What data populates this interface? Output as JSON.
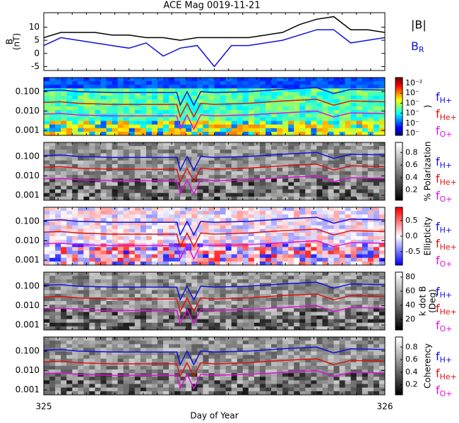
{
  "chart_data": [
    {
      "type": "line",
      "title": "ACE Mag 0019-11-21",
      "ylabel": [
        "B",
        "(nT)"
      ],
      "x": [
        325,
        325.05,
        325.1,
        325.15,
        325.2,
        325.25,
        325.3,
        325.35,
        325.4,
        325.45,
        325.5,
        325.55,
        325.6,
        325.65,
        325.7,
        325.75,
        325.8,
        325.85,
        325.9,
        325.95,
        326
      ],
      "series": [
        {
          "name": "|B|",
          "color": "#000000",
          "values": [
            6,
            8,
            8,
            8,
            7,
            7,
            6,
            6,
            5,
            6,
            6,
            6,
            6,
            7,
            8,
            11,
            13,
            14,
            9,
            9,
            8
          ]
        },
        {
          "name": "BR",
          "color": "#1010e0",
          "values": [
            3,
            6,
            5,
            4,
            3,
            2,
            4,
            -1,
            2,
            3,
            -5,
            3,
            3,
            4,
            5,
            7,
            9,
            9,
            4,
            5,
            6
          ]
        }
      ],
      "xlim": [
        325,
        326
      ],
      "ylim": [
        -6.5,
        15.5
      ],
      "yticks": [
        -5,
        0,
        5,
        10
      ]
    },
    {
      "type": "spectrogram",
      "cmap": "jet",
      "log_y": true,
      "x": [
        325,
        325.05,
        325.1,
        325.2,
        325.3,
        325.39,
        325.4,
        325.42,
        325.44,
        325.46,
        325.5,
        325.6,
        325.7,
        325.8,
        325.85,
        325.9,
        326
      ],
      "series": [
        {
          "name": "fH+",
          "color": "#1010e0",
          "values": [
            0.11,
            0.12,
            0.1,
            0.09,
            0.09,
            0.09,
            0.02,
            0.1,
            0.02,
            0.1,
            0.09,
            0.1,
            0.13,
            0.16,
            0.08,
            0.13,
            0.12
          ]
        },
        {
          "name": "fHe+",
          "color": "#e01010",
          "values": [
            0.028,
            0.03,
            0.025,
            0.022,
            0.022,
            0.022,
            0.005,
            0.025,
            0.005,
            0.025,
            0.022,
            0.025,
            0.033,
            0.04,
            0.02,
            0.033,
            0.03
          ]
        },
        {
          "name": "fO+",
          "color": "#e010e0",
          "values": [
            0.007,
            0.0075,
            0.0063,
            0.0056,
            0.0056,
            0.0056,
            0.0012,
            0.0063,
            0.0012,
            0.0063,
            0.0056,
            0.0063,
            0.008,
            0.01,
            0.005,
            0.008,
            0.0075
          ]
        }
      ],
      "xlim": [
        325,
        326
      ],
      "ylim": [
        0.00056,
        0.53
      ],
      "yticks": [
        {
          "value": 0.001,
          "label": "0.001"
        },
        {
          "value": 0.01,
          "label": "0.010"
        },
        {
          "value": 0.1,
          "label": "0.100"
        }
      ],
      "colorbar": {
        "label": [
          ")"
        ],
        "log": true,
        "lim": [
          6.1e-08,
          0.037
        ],
        "ticks": [
          {
            "value": 1e-07,
            "label": "10⁻"
          },
          {
            "value": 1e-06,
            "label": "10⁻"
          },
          {
            "value": 1e-05,
            "label": "10⁻"
          },
          {
            "value": 0.0001,
            "label": "10⁻"
          },
          {
            "value": 0.001,
            "label": "10⁻"
          },
          {
            "value": 0.01,
            "label": "10⁻²"
          }
        ]
      }
    },
    {
      "type": "spectrogram",
      "cmap": "gray",
      "log_y": true,
      "x": [
        325,
        325.05,
        325.1,
        325.2,
        325.3,
        325.39,
        325.4,
        325.42,
        325.44,
        325.46,
        325.5,
        325.6,
        325.7,
        325.8,
        325.85,
        325.9,
        326
      ],
      "series": [
        {
          "name": "fH+",
          "color": "#1010e0",
          "values": [
            0.11,
            0.12,
            0.1,
            0.09,
            0.09,
            0.09,
            0.02,
            0.1,
            0.02,
            0.1,
            0.09,
            0.1,
            0.13,
            0.16,
            0.08,
            0.13,
            0.12
          ]
        },
        {
          "name": "fHe+",
          "color": "#e01010",
          "values": [
            0.028,
            0.03,
            0.025,
            0.022,
            0.022,
            0.022,
            0.005,
            0.025,
            0.005,
            0.025,
            0.022,
            0.025,
            0.033,
            0.04,
            0.02,
            0.033,
            0.03
          ]
        },
        {
          "name": "fO+",
          "color": "#e010e0",
          "values": [
            0.007,
            0.0075,
            0.0063,
            0.0056,
            0.0056,
            0.0056,
            0.0012,
            0.0063,
            0.0012,
            0.0063,
            0.0056,
            0.0063,
            0.008,
            0.01,
            0.005,
            0.008,
            0.0075
          ]
        }
      ],
      "xlim": [
        325,
        326
      ],
      "ylim": [
        0.00056,
        0.53
      ],
      "yticks": [
        {
          "value": 0.001,
          "label": "0.001"
        },
        {
          "value": 0.01,
          "label": "0.010"
        },
        {
          "value": 0.1,
          "label": "0.100"
        }
      ],
      "colorbar": {
        "label": [
          "% Polarization"
        ],
        "lim": [
          0.04,
          0.96
        ],
        "ticks": [
          0.2,
          0.4,
          0.6,
          0.8
        ]
      }
    },
    {
      "type": "spectrogram",
      "cmap": "rwb",
      "log_y": true,
      "x": [
        325,
        325.05,
        325.1,
        325.2,
        325.3,
        325.39,
        325.4,
        325.42,
        325.44,
        325.46,
        325.5,
        325.6,
        325.7,
        325.8,
        325.85,
        325.9,
        326
      ],
      "series": [
        {
          "name": "fH+",
          "color": "#1010e0",
          "values": [
            0.11,
            0.12,
            0.1,
            0.09,
            0.09,
            0.09,
            0.02,
            0.1,
            0.02,
            0.1,
            0.09,
            0.1,
            0.13,
            0.16,
            0.08,
            0.13,
            0.12
          ]
        },
        {
          "name": "fHe+",
          "color": "#e01010",
          "values": [
            0.028,
            0.03,
            0.025,
            0.022,
            0.022,
            0.022,
            0.005,
            0.025,
            0.005,
            0.025,
            0.022,
            0.025,
            0.033,
            0.04,
            0.02,
            0.033,
            0.03
          ]
        },
        {
          "name": "fO+",
          "color": "#e010e0",
          "values": [
            0.007,
            0.0075,
            0.0063,
            0.0056,
            0.0056,
            0.0056,
            0.0012,
            0.0063,
            0.0012,
            0.0063,
            0.0056,
            0.0063,
            0.008,
            0.01,
            0.005,
            0.008,
            0.0075
          ]
        }
      ],
      "xlim": [
        325,
        326
      ],
      "ylim": [
        0.00056,
        0.53
      ],
      "yticks": [
        {
          "value": 0.001,
          "label": "0.001"
        },
        {
          "value": 0.01,
          "label": "0.010"
        },
        {
          "value": 0.1,
          "label": "0.100"
        }
      ],
      "colorbar": {
        "label": [
          "Ellipticity"
        ],
        "lim": [
          -0.93,
          0.93
        ],
        "ticks": [
          -0.5,
          {
            "value": 0,
            "label": "0.0"
          },
          0.5
        ]
      }
    },
    {
      "type": "spectrogram",
      "cmap": "gray",
      "log_y": true,
      "x": [
        325,
        325.05,
        325.1,
        325.2,
        325.3,
        325.39,
        325.4,
        325.42,
        325.44,
        325.46,
        325.5,
        325.6,
        325.7,
        325.8,
        325.85,
        325.9,
        326
      ],
      "series": [
        {
          "name": "fH+",
          "color": "#1010e0",
          "values": [
            0.11,
            0.12,
            0.1,
            0.09,
            0.09,
            0.09,
            0.02,
            0.1,
            0.02,
            0.1,
            0.09,
            0.1,
            0.13,
            0.16,
            0.08,
            0.13,
            0.12
          ]
        },
        {
          "name": "fHe+",
          "color": "#e01010",
          "values": [
            0.028,
            0.03,
            0.025,
            0.022,
            0.022,
            0.022,
            0.005,
            0.025,
            0.005,
            0.025,
            0.022,
            0.025,
            0.033,
            0.04,
            0.02,
            0.033,
            0.03
          ]
        },
        {
          "name": "fO+",
          "color": "#e010e0",
          "values": [
            0.007,
            0.0075,
            0.0063,
            0.0056,
            0.0056,
            0.0056,
            0.0012,
            0.0063,
            0.0012,
            0.0063,
            0.0056,
            0.0063,
            0.008,
            0.01,
            0.005,
            0.008,
            0.0075
          ]
        }
      ],
      "xlim": [
        325,
        326
      ],
      "ylim": [
        0.00056,
        0.53
      ],
      "yticks": [
        {
          "value": 0.001,
          "label": "0.001"
        },
        {
          "value": 0.01,
          "label": "0.010"
        },
        {
          "value": 0.1,
          "label": "0.100"
        }
      ],
      "colorbar": {
        "label": [
          "k dot B",
          "(Deg)"
        ],
        "lim": [
          5,
          87
        ],
        "ticks": [
          20,
          40,
          60,
          80
        ]
      }
    },
    {
      "type": "spectrogram",
      "cmap": "gray",
      "log_y": true,
      "x": [
        325,
        325.05,
        325.1,
        325.2,
        325.3,
        325.39,
        325.4,
        325.42,
        325.44,
        325.46,
        325.5,
        325.6,
        325.7,
        325.8,
        325.85,
        325.9,
        326
      ],
      "series": [
        {
          "name": "fH+",
          "color": "#1010e0",
          "values": [
            0.11,
            0.12,
            0.1,
            0.09,
            0.09,
            0.09,
            0.02,
            0.1,
            0.02,
            0.1,
            0.09,
            0.1,
            0.13,
            0.16,
            0.08,
            0.13,
            0.12
          ]
        },
        {
          "name": "fHe+",
          "color": "#e01010",
          "values": [
            0.028,
            0.03,
            0.025,
            0.022,
            0.022,
            0.022,
            0.005,
            0.025,
            0.005,
            0.025,
            0.022,
            0.025,
            0.033,
            0.04,
            0.02,
            0.033,
            0.03
          ]
        },
        {
          "name": "fO+",
          "color": "#e010e0",
          "values": [
            0.007,
            0.0075,
            0.0063,
            0.0056,
            0.0056,
            0.0056,
            0.0012,
            0.0063,
            0.0012,
            0.0063,
            0.0056,
            0.0063,
            0.008,
            0.01,
            0.005,
            0.008,
            0.0075
          ]
        }
      ],
      "xlim": [
        325,
        326
      ],
      "ylim": [
        0.00056,
        0.53
      ],
      "yticks": [
        {
          "value": 0.001,
          "label": "0.001"
        },
        {
          "value": 0.01,
          "label": "0.010"
        },
        {
          "value": 0.1,
          "label": "0.100"
        }
      ],
      "xticks": [
        325,
        326
      ],
      "xlabel": "Day of Year",
      "colorbar": {
        "label": [
          "Coherency"
        ],
        "lim": [
          0.04,
          0.96
        ],
        "ticks": [
          0.2,
          0.4,
          0.6,
          0.8
        ]
      }
    }
  ]
}
